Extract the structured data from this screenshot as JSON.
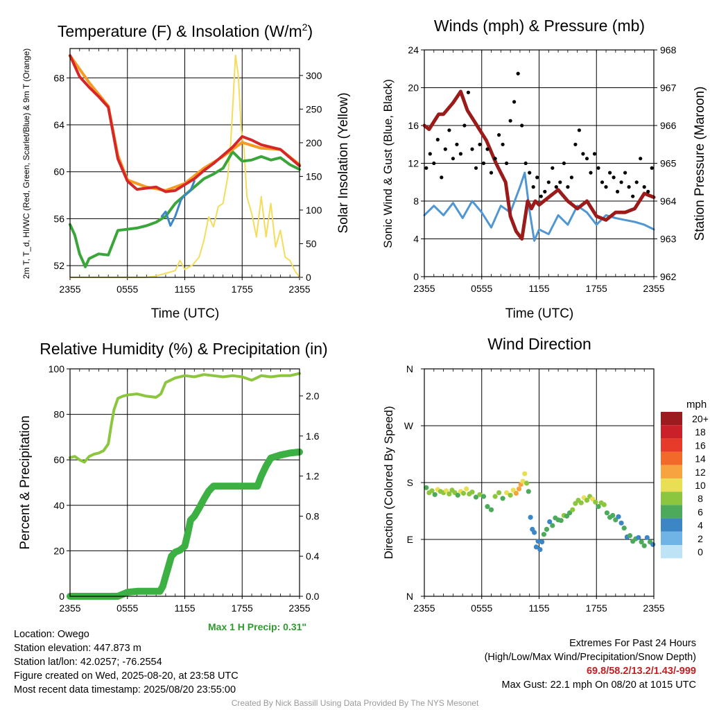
{
  "panels": {
    "temp": {
      "title_main": "Temperature (F) & Insolation (W/m",
      "title_sup": "2",
      "title_end": ")",
      "ylabel_left": "2m T, T_d, HI/WC (Red, Green, Scarlet/Blue) & 9m T (Orange)",
      "ylabel_right": "Solar Insolation (Yellow)",
      "xlabel": "Time (UTC)",
      "left_ticks": [
        "52",
        "56",
        "60",
        "64",
        "68"
      ],
      "right_ticks": [
        "0",
        "50",
        "100",
        "150",
        "200",
        "250",
        "300"
      ]
    },
    "winds": {
      "title": "Winds (mph) & Pressure (mb)",
      "ylabel_left": "Sonic Wind & Gust (Blue, Black)",
      "ylabel_right": "Station Pressure (Maroon)",
      "xlabel": "Time (UTC)",
      "left_ticks": [
        "0",
        "4",
        "8",
        "12",
        "16",
        "20",
        "24"
      ],
      "right_ticks": [
        "962",
        "963",
        "964",
        "965",
        "966",
        "967",
        "968"
      ]
    },
    "rh": {
      "title": "Relative Humidity (%) & Precipitation (in)",
      "ylabel_left": "Percent & Precipitation",
      "left_ticks": [
        "0",
        "20",
        "40",
        "60",
        "80",
        "100"
      ],
      "right_ticks": [
        "0.0",
        "0.4",
        "0.8",
        "1.2",
        "1.6",
        "2.0"
      ],
      "max_precip": "Max 1 H Precip: 0.31\""
    },
    "wdir": {
      "title": "Wind Direction",
      "ylabel_left": "Direction (Colored By Speed)",
      "dir_ticks": [
        "N",
        "E",
        "S",
        "W",
        "N"
      ],
      "legend_title": "mph",
      "legend_labels": [
        "20+",
        "18",
        "16",
        "14",
        "12",
        "10",
        "8",
        "6",
        "4",
        "2",
        "0"
      ]
    }
  },
  "x_ticks": [
    "2355",
    "0555",
    "1155",
    "1755",
    "2355"
  ],
  "colors": {
    "temp": "#d62728",
    "dewpoint": "#3aa63a",
    "heat_index": "#e8412c",
    "wind_chill": "#3d86c6",
    "temp_9m": "#f59a23",
    "insolation": "#f5dc5a",
    "wind": "#4f96d2",
    "gust": "#000000",
    "pressure": "#9b1a1a",
    "rh": "#8cc63f",
    "precip": "#3cb043",
    "legend": [
      "#9b1b1e",
      "#c9202a",
      "#e63a2b",
      "#f26a2a",
      "#f7a440",
      "#e8df55",
      "#8cc63f",
      "#4daa5a",
      "#3d86c6",
      "#6fb4e4",
      "#bfe3f6"
    ]
  },
  "chart_data": [
    {
      "type": "line",
      "title": "Temperature (F) & Insolation (W/m2)",
      "xlabel": "Time (UTC)",
      "ylabel": "2m T, T_d, HI/WC (Red, Green, Scarlet/Blue) & 9m T (Orange)",
      "y2label": "Solar Insolation (Yellow)",
      "x_hours": [
        0,
        6,
        12,
        18,
        24
      ],
      "ylim": [
        51,
        70.5
      ],
      "y2lim": [
        0,
        340
      ],
      "series": [
        {
          "name": "2m T",
          "axis": "left",
          "x": [
            0,
            1,
            2,
            3,
            4,
            5,
            6,
            7,
            8,
            9,
            10,
            11,
            12,
            13,
            14,
            15,
            16,
            17,
            18,
            19,
            20,
            21,
            22,
            23,
            24
          ],
          "values": [
            69.9,
            68.1,
            67.2,
            66.4,
            65.5,
            61.1,
            59.2,
            58.5,
            58.6,
            58.7,
            58.3,
            58.4,
            58.9,
            59.4,
            60.1,
            60.7,
            61.4,
            62.1,
            63.0,
            62.7,
            62.3,
            62.1,
            61.9,
            61.2,
            60.5
          ]
        },
        {
          "name": "9m T",
          "axis": "left",
          "x": [
            0,
            2,
            4,
            5,
            6,
            8,
            10,
            12,
            14,
            16,
            17,
            18,
            20,
            22,
            24
          ],
          "values": [
            69.9,
            67.6,
            65.6,
            61.4,
            59.3,
            58.7,
            58.4,
            59.0,
            60.3,
            61.3,
            61.9,
            62.5,
            62.0,
            61.9,
            60.6
          ]
        },
        {
          "name": "2m Td",
          "axis": "left",
          "x": [
            0,
            0.5,
            1,
            1.6,
            2,
            3,
            4,
            5,
            6,
            7,
            8,
            9,
            10,
            11,
            12,
            13,
            14,
            15,
            16,
            17,
            18,
            19,
            20,
            21,
            22,
            23,
            24
          ],
          "values": [
            55.5,
            54.6,
            53.0,
            51.9,
            52.6,
            53.0,
            52.9,
            55.0,
            55.1,
            55.2,
            55.4,
            55.7,
            56.2,
            57.3,
            58.0,
            58.7,
            59.4,
            59.8,
            60.3,
            61.7,
            60.9,
            61.0,
            61.3,
            61.0,
            61.2,
            60.6,
            60.2
          ]
        },
        {
          "name": "Wind Chill",
          "axis": "left",
          "x": [
            9.6,
            10,
            10.5,
            11,
            11.6,
            12,
            12.6,
            13
          ],
          "values": [
            56.2,
            56.6,
            55.4,
            56.2,
            57.6,
            58.0,
            58.4,
            59.2
          ]
        },
        {
          "name": "Solar Insolation",
          "axis": "right",
          "x": [
            0,
            8,
            9,
            11,
            11.5,
            12,
            12.8,
            13.5,
            14,
            14.5,
            15,
            15.5,
            16,
            16.5,
            16.8,
            17,
            17.3,
            17.6,
            17.9,
            18.2,
            18.5,
            19,
            19.5,
            20,
            20.5,
            21,
            21.5,
            22,
            22.5,
            23,
            23.5,
            24
          ],
          "values": [
            0,
            0,
            2,
            10,
            25,
            12,
            18,
            30,
            55,
            90,
            75,
            105,
            110,
            150,
            200,
            250,
            330,
            300,
            220,
            190,
            120,
            95,
            60,
            120,
            60,
            110,
            45,
            70,
            30,
            25,
            10,
            0
          ]
        }
      ]
    },
    {
      "type": "line",
      "title": "Winds (mph) & Pressure (mb)",
      "xlabel": "Time (UTC)",
      "ylabel": "Sonic Wind & Gust (Blue, Black)",
      "y2label": "Station Pressure (Maroon)",
      "ylim": [
        0,
        24
      ],
      "y2lim": [
        962,
        968
      ],
      "series": [
        {
          "name": "Sonic Wind",
          "axis": "left",
          "x": [
            0,
            1,
            2,
            3,
            4,
            5,
            6,
            7,
            8,
            9,
            10,
            10.5,
            11,
            11.5,
            12,
            13,
            14,
            15,
            16,
            17,
            18,
            19,
            20,
            21,
            22,
            23,
            24
          ],
          "values": [
            6.5,
            7.5,
            6.5,
            7.8,
            6.2,
            8.0,
            6.8,
            5.2,
            7.5,
            6.8,
            9.5,
            11.0,
            7.0,
            3.8,
            5.0,
            4.5,
            6.5,
            5.5,
            7.5,
            6.8,
            5.5,
            6.5,
            6.2,
            6.0,
            5.8,
            5.5,
            5.0
          ]
        },
        {
          "name": "Station Pressure",
          "axis": "right",
          "x": [
            0,
            0.5,
            1,
            1.5,
            2,
            3,
            3.8,
            4.5,
            5.5,
            6.5,
            7.5,
            8.5,
            9,
            9.6,
            10.2,
            10.8,
            11.2,
            11.6,
            12,
            13,
            14,
            15,
            16,
            17,
            18,
            19,
            20,
            21,
            22,
            23,
            24
          ],
          "values": [
            966.0,
            965.9,
            966.1,
            966.3,
            966.3,
            966.6,
            966.9,
            966.4,
            966.0,
            965.6,
            965.0,
            964.5,
            963.6,
            963.2,
            963.0,
            964.0,
            963.8,
            964.0,
            963.9,
            964.1,
            964.3,
            964.0,
            963.8,
            964.0,
            963.6,
            963.5,
            963.7,
            963.7,
            963.8,
            964.2,
            964.1
          ]
        },
        {
          "name": "Gust",
          "axis": "left",
          "type": "scatter",
          "x": [
            0.2,
            0.6,
            1.0,
            1.4,
            1.8,
            2.2,
            2.6,
            3.0,
            3.4,
            3.8,
            4.2,
            4.6,
            5.0,
            5.4,
            5.8,
            6.2,
            6.6,
            7.0,
            7.4,
            7.8,
            8.2,
            8.6,
            9.0,
            9.4,
            9.8,
            10.2,
            10.6,
            11.0,
            11.4,
            11.8,
            12.2,
            12.6,
            13.0,
            13.4,
            13.8,
            14.2,
            14.6,
            15.0,
            15.4,
            15.8,
            16.2,
            16.6,
            17.0,
            17.4,
            17.8,
            18.2,
            18.6,
            19.0,
            19.4,
            19.8,
            20.2,
            20.6,
            21.0,
            21.4,
            21.8,
            22.2,
            22.6,
            23.0,
            23.4,
            23.8
          ],
          "values": [
            11.5,
            13.0,
            12.0,
            14.5,
            10.5,
            13.5,
            15.5,
            12.5,
            14.0,
            13.0,
            16.0,
            19.5,
            13.5,
            11.5,
            14.0,
            12.0,
            13.5,
            11.0,
            12.5,
            15.0,
            14.0,
            12.0,
            16.5,
            18.5,
            21.5,
            16.0,
            12.0,
            11.0,
            9.5,
            10.5,
            8.5,
            9.0,
            10.0,
            11.5,
            9.5,
            10.0,
            12.0,
            9.5,
            10.5,
            14.0,
            15.5,
            13.0,
            12.5,
            11.0,
            13.0,
            11.5,
            10.0,
            9.5,
            11.0,
            10.5,
            9.0,
            10.0,
            11.0,
            9.5,
            8.5,
            10.0,
            12.5,
            9.5,
            9.0,
            11.5
          ]
        }
      ]
    },
    {
      "type": "line",
      "title": "Relative Humidity (%) & Precipitation (in)",
      "ylabel": "Percent & Precipitation",
      "ylim": [
        0,
        100
      ],
      "y2lim": [
        0,
        2.27
      ],
      "series": [
        {
          "name": "RH",
          "axis": "left",
          "x": [
            0,
            0.5,
            1,
            1.5,
            2,
            2.5,
            3,
            3.5,
            4,
            4.3,
            4.6,
            5,
            5.5,
            6,
            7,
            8,
            9,
            9.5,
            10,
            10.5,
            11,
            12,
            13,
            14,
            15,
            16,
            17,
            18,
            19,
            20,
            21,
            22,
            23,
            24
          ],
          "values": [
            61,
            61.5,
            60,
            59,
            61.5,
            62.5,
            63,
            64,
            67,
            75,
            82,
            87,
            88,
            88.5,
            89,
            88,
            87.5,
            89,
            94,
            95,
            96,
            97,
            96.5,
            97.5,
            97,
            96.5,
            97,
            96.5,
            95,
            97,
            96.5,
            97,
            97,
            98
          ]
        },
        {
          "name": "Precipitation",
          "axis": "right",
          "x": [
            0,
            2,
            4,
            5,
            5.5,
            6,
            7,
            8,
            9,
            9.4,
            9.7,
            10,
            10.3,
            10.6,
            11,
            11.5,
            12,
            12.3,
            12.6,
            13,
            13.5,
            14,
            14.5,
            15,
            16,
            17,
            18,
            19,
            19.6,
            20,
            20.5,
            21,
            22,
            23,
            24
          ],
          "values": [
            0,
            0,
            0,
            0,
            0.02,
            0.04,
            0.05,
            0.05,
            0.05,
            0.05,
            0.1,
            0.2,
            0.3,
            0.4,
            0.44,
            0.46,
            0.5,
            0.62,
            0.76,
            0.8,
            0.88,
            0.97,
            1.05,
            1.1,
            1.1,
            1.1,
            1.1,
            1.1,
            1.1,
            1.2,
            1.3,
            1.38,
            1.41,
            1.43,
            1.44
          ]
        }
      ]
    },
    {
      "type": "scatter",
      "title": "Wind Direction",
      "ylabel": "Direction (Colored By Speed)",
      "ylim": [
        0,
        360
      ],
      "series": [
        {
          "name": "Wind Direction",
          "x": [
            0.2,
            0.5,
            0.8,
            1.1,
            1.4,
            1.7,
            2.0,
            2.3,
            2.6,
            2.9,
            3.2,
            3.5,
            3.8,
            4.1,
            4.4,
            4.7,
            5.0,
            5.4,
            5.8,
            6.2,
            6.6,
            7.0,
            7.4,
            7.8,
            8.2,
            8.6,
            9.0,
            9.3,
            9.6,
            9.9,
            10.1,
            10.3,
            10.5,
            10.7,
            10.9,
            11.1,
            11.3,
            11.5,
            11.7,
            11.9,
            12.1,
            12.3,
            12.5,
            12.8,
            13.1,
            13.4,
            13.7,
            14.0,
            14.3,
            14.6,
            14.9,
            15.2,
            15.5,
            15.8,
            16.1,
            16.4,
            16.7,
            17.0,
            17.3,
            17.6,
            17.9,
            18.2,
            18.5,
            18.8,
            19.1,
            19.4,
            19.7,
            20.0,
            20.3,
            20.6,
            20.9,
            21.2,
            21.5,
            21.8,
            22.1,
            22.4,
            22.7,
            23.0,
            23.3,
            23.6,
            23.9
          ],
          "values": [
            172,
            164,
            167,
            161,
            169,
            166,
            164,
            167,
            162,
            168,
            164,
            160,
            166,
            163,
            170,
            162,
            165,
            157,
            161,
            158,
            142,
            137,
            158,
            164,
            155,
            164,
            160,
            168,
            163,
            170,
            177,
            182,
            194,
            179,
            166,
            125,
            106,
            101,
            78,
            87,
            74,
            86,
            98,
            106,
            118,
            112,
            124,
            121,
            120,
            128,
            127,
            132,
            137,
            147,
            152,
            148,
            156,
            152,
            158,
            154,
            149,
            142,
            148,
            145,
            132,
            125,
            128,
            121,
            126,
            116,
            108,
            94,
            96,
            87,
            91,
            93,
            86,
            80,
            93,
            86,
            82
          ],
          "speed": [
            6,
            8,
            7,
            6,
            9,
            8,
            7,
            10,
            8,
            7,
            8,
            6,
            9,
            7,
            10,
            8,
            7,
            6,
            8,
            6,
            5,
            6,
            7,
            8,
            6,
            9,
            8,
            10,
            11,
            12,
            12,
            10,
            9,
            8,
            6,
            4,
            3,
            4,
            4,
            3,
            4,
            4,
            5,
            6,
            4,
            5,
            6,
            5,
            6,
            7,
            6,
            6,
            7,
            8,
            7,
            8,
            9,
            8,
            7,
            9,
            8,
            6,
            7,
            7,
            6,
            5,
            6,
            5,
            4,
            4,
            5,
            3,
            5,
            6,
            5,
            4,
            5,
            6,
            4,
            5,
            4
          ]
        }
      ]
    }
  ],
  "info": {
    "location": "Location: Owego",
    "elevation": "Station elevation: 447.873 m",
    "latlon": "Station lat/lon: 42.0257; -76.2554",
    "created": "Figure created on Wed, 2025-08-20, at 23:58 UTC",
    "recent": "Most recent data timestamp: 2025/08/20 23:55:00",
    "extremes_title": "Extremes For Past 24 Hours",
    "extremes_sub": "(High/Low/Max Wind/Precipitation/Snow Depth)",
    "extremes_values": "69.8/58.2/13.2/1.43/-999",
    "max_gust": "Max Gust: 22.1 mph On 08/20 at 1015 UTC",
    "credit": "Created By Nick Bassill Using Data Provided By The NYS Mesonet"
  }
}
